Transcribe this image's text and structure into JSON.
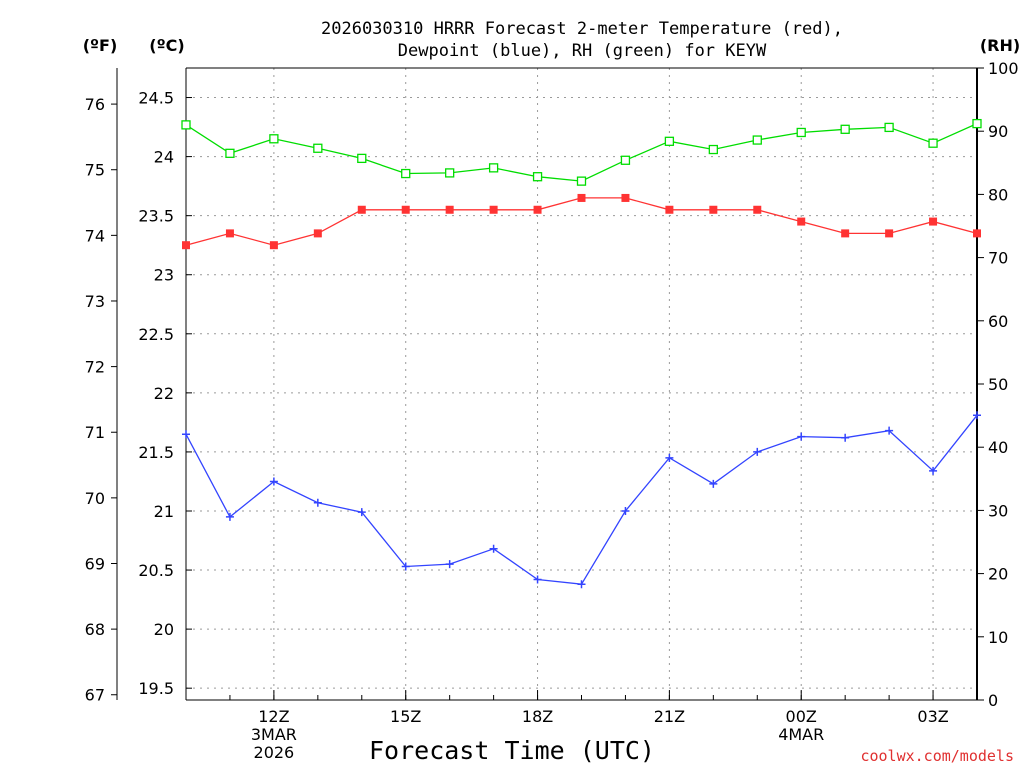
{
  "chart_data": {
    "type": "line",
    "title_lines": [
      "2026030310 HRRR Forecast 2-meter Temperature (red),",
      "Dewpoint (blue), RH (green) for KEYW"
    ],
    "xlabel": "Forecast Time (UTC)",
    "credit": "coolwx.com/models",
    "units": {
      "fahrenheit": "(ºF)",
      "celsius": "(ºC)",
      "rh": "(RH)"
    },
    "x_hours": [
      10,
      11,
      12,
      13,
      14,
      15,
      16,
      17,
      18,
      19,
      20,
      21,
      22,
      23,
      24,
      25,
      26,
      27,
      28
    ],
    "xlim": [
      10,
      28
    ],
    "x_ticks": [
      {
        "hour": 12,
        "lines": [
          "12Z",
          "3MAR",
          "2026"
        ]
      },
      {
        "hour": 15,
        "lines": [
          "15Z"
        ]
      },
      {
        "hour": 18,
        "lines": [
          "18Z"
        ]
      },
      {
        "hour": 21,
        "lines": [
          "21Z"
        ]
      },
      {
        "hour": 24,
        "lines": [
          "00Z",
          "4MAR"
        ]
      },
      {
        "hour": 27,
        "lines": [
          "03Z"
        ]
      }
    ],
    "ylim_celsius": [
      19.4,
      24.75
    ],
    "celsius_ticks": [
      19.5,
      20,
      20.5,
      21,
      21.5,
      22,
      22.5,
      23,
      23.5,
      24,
      24.5
    ],
    "celsius_tick_labels": [
      "19.5",
      "20",
      "20.5",
      "21",
      "21.5",
      "22",
      "22.5",
      "23",
      "23.5",
      "24",
      "24.5"
    ],
    "fahrenheit_ticks": [
      67,
      68,
      69,
      70,
      71,
      72,
      73,
      74,
      75,
      76
    ],
    "fahrenheit_tick_labels": [
      "67",
      "68",
      "69",
      "70",
      "71",
      "72",
      "73",
      "74",
      "75",
      "76"
    ],
    "ylim_rh": [
      0,
      100
    ],
    "rh_ticks": [
      0,
      10,
      20,
      30,
      40,
      50,
      60,
      70,
      80,
      90,
      100
    ],
    "rh_tick_labels": [
      "0",
      "10",
      "20",
      "30",
      "40",
      "50",
      "60",
      "70",
      "80",
      "90",
      "100"
    ],
    "series": [
      {
        "name": "Temperature",
        "axis": "celsius",
        "color": "#ff3333",
        "marker": "filled-square",
        "values": [
          23.25,
          23.35,
          23.25,
          23.35,
          23.55,
          23.55,
          23.55,
          23.55,
          23.55,
          23.65,
          23.65,
          23.55,
          23.55,
          23.55,
          23.45,
          23.35,
          23.35,
          23.45,
          23.35
        ]
      },
      {
        "name": "Dewpoint",
        "axis": "celsius",
        "color": "#3344ff",
        "marker": "plus",
        "values": [
          21.65,
          20.95,
          21.25,
          21.07,
          20.99,
          20.53,
          20.55,
          20.68,
          20.42,
          20.38,
          21.0,
          21.45,
          21.23,
          21.5,
          21.63,
          21.62,
          21.68,
          21.34,
          21.81
        ]
      },
      {
        "name": "RH",
        "axis": "rh",
        "color": "#00dd00",
        "marker": "open-square",
        "values": [
          91.0,
          86.5,
          88.8,
          87.3,
          85.7,
          83.3,
          83.4,
          84.2,
          82.8,
          82.1,
          85.4,
          88.4,
          87.1,
          88.6,
          89.8,
          90.3,
          90.6,
          88.1,
          91.2
        ]
      }
    ]
  }
}
